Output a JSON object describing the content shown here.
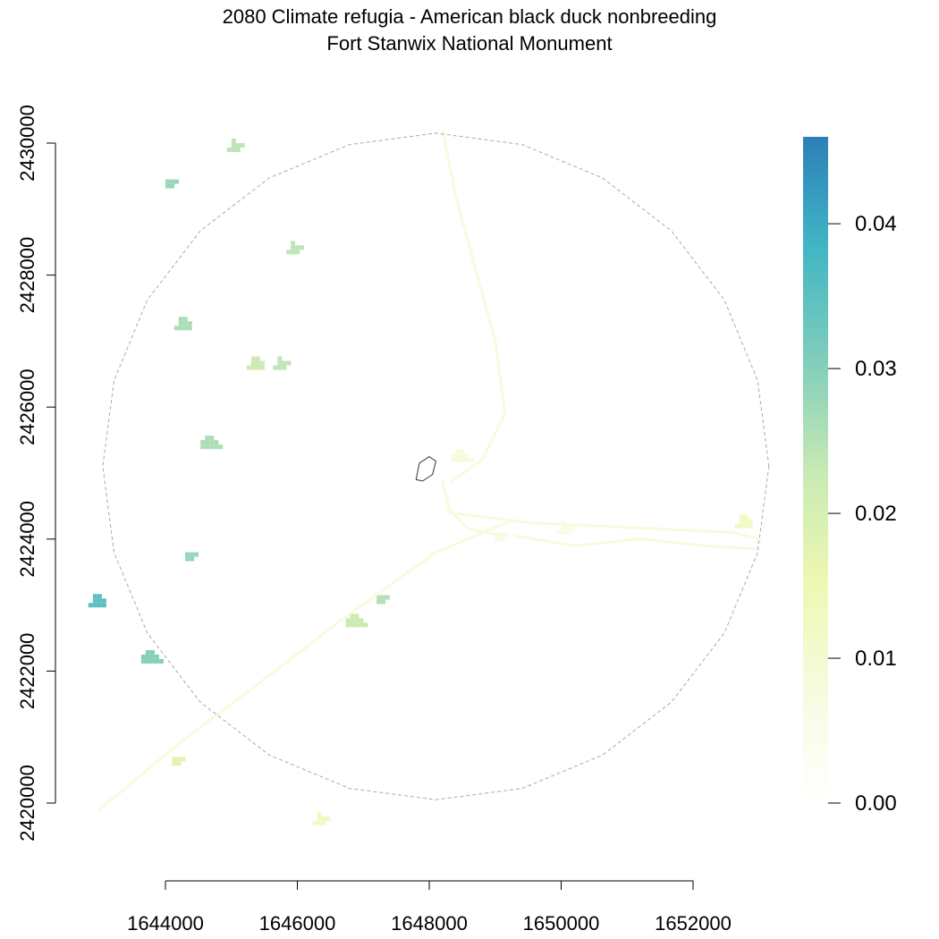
{
  "title": "2080 Climate refugia - American black duck nonbreeding",
  "subtitle": "Fort Stanwix National Monument",
  "map": {
    "x_axis": {
      "range": [
        1642000,
        1654000
      ],
      "ticks": [
        {
          "value": 1644000,
          "label": "1644000"
        },
        {
          "value": 1646000,
          "label": "1646000"
        },
        {
          "value": 1648000,
          "label": "1648000"
        },
        {
          "value": 1650000,
          "label": "1650000"
        },
        {
          "value": 1652000,
          "label": "1652000"
        }
      ]
    },
    "y_axis": {
      "range": [
        2419500,
        2430500
      ],
      "ticks": [
        {
          "value": 2420000,
          "label": "2420000"
        },
        {
          "value": 2422000,
          "label": "2422000"
        },
        {
          "value": 2424000,
          "label": "2424000"
        },
        {
          "value": 2426000,
          "label": "2426000"
        },
        {
          "value": 2428000,
          "label": "2428000"
        },
        {
          "value": 2430000,
          "label": "2430000"
        }
      ]
    },
    "buffer_circle": {
      "center": [
        1648100,
        2425100
      ],
      "radius": 5050
    },
    "park_boundary": [
      [
        1647800,
        2424900
      ],
      [
        1647850,
        2425150
      ],
      [
        1648000,
        2425250
      ],
      [
        1648100,
        2425180
      ],
      [
        1648050,
        2424980
      ],
      [
        1647900,
        2424880
      ]
    ]
  },
  "legend": {
    "min": 0.0,
    "max": 0.046,
    "colors": [
      "#ffffff",
      "#f7fbe0",
      "#edf8b1",
      "#c7e9b4",
      "#7fcdbb",
      "#41b6c4",
      "#2c7fb8"
    ],
    "ticks": [
      {
        "value": 0.0,
        "label": "0.00"
      },
      {
        "value": 0.01,
        "label": "0.01"
      },
      {
        "value": 0.02,
        "label": "0.02"
      },
      {
        "value": 0.03,
        "label": "0.03"
      },
      {
        "value": 0.04,
        "label": "0.04"
      }
    ]
  },
  "raster": {
    "patches": [
      {
        "x": 1644000,
        "y": 2429450,
        "v": 0.028
      },
      {
        "x": 1645900,
        "y": 2428450,
        "v": 0.024
      },
      {
        "x": 1642900,
        "y": 2423100,
        "v": 0.035
      },
      {
        "x": 1643700,
        "y": 2422250,
        "v": 0.03
      },
      {
        "x": 1647200,
        "y": 2423150,
        "v": 0.025
      },
      {
        "x": 1645000,
        "y": 2430000,
        "v": 0.024
      },
      {
        "x": 1644200,
        "y": 2427300,
        "v": 0.026
      },
      {
        "x": 1644600,
        "y": 2425500,
        "v": 0.026
      },
      {
        "x": 1644300,
        "y": 2423800,
        "v": 0.028
      },
      {
        "x": 1645700,
        "y": 2426700,
        "v": 0.024
      },
      {
        "x": 1645300,
        "y": 2426700,
        "v": 0.022
      },
      {
        "x": 1646800,
        "y": 2422800,
        "v": 0.022
      },
      {
        "x": 1649000,
        "y": 2424100,
        "v": 0.008
      },
      {
        "x": 1650000,
        "y": 2424200,
        "v": 0.006
      },
      {
        "x": 1652700,
        "y": 2424300,
        "v": 0.012
      },
      {
        "x": 1648400,
        "y": 2425300,
        "v": 0.008
      },
      {
        "x": 1644100,
        "y": 2420700,
        "v": 0.018
      },
      {
        "x": 1646300,
        "y": 2419800,
        "v": 0.012
      }
    ]
  }
}
